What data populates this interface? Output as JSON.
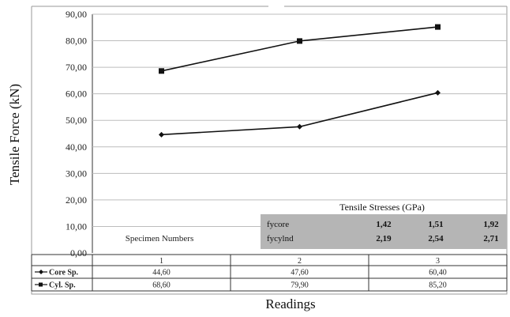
{
  "chart_data": {
    "type": "line",
    "ylabel": "Tensile Force (kN)",
    "xlabel": "Readings",
    "ylim": [
      0,
      90
    ],
    "y_ticks": [
      "0,00",
      "10,00",
      "20,00",
      "30,00",
      "40,00",
      "50,00",
      "60,00",
      "70,00",
      "80,00",
      "90,00"
    ],
    "categories": [
      "1",
      "2",
      "3"
    ],
    "grid": true,
    "series": [
      {
        "name": "Core Sp.",
        "marker": "diamond",
        "values": [
          44.6,
          47.6,
          60.4
        ],
        "table_values": [
          "44,60",
          "47,60",
          "60,40"
        ]
      },
      {
        "name": "Cyl. Sp.",
        "marker": "square",
        "values": [
          68.6,
          79.9,
          85.2
        ],
        "table_values": [
          "68,60",
          "79,90",
          "85,20"
        ]
      }
    ],
    "table_header": "Specimen Numbers",
    "stress_table": {
      "title": "Tensile Stresses (GPa)",
      "rows": [
        {
          "label": "fycore",
          "values": [
            "1,42",
            "1,51",
            "1,92"
          ]
        },
        {
          "label": "fycylnd",
          "values": [
            "2,19",
            "2,54",
            "2,71"
          ]
        }
      ]
    }
  }
}
